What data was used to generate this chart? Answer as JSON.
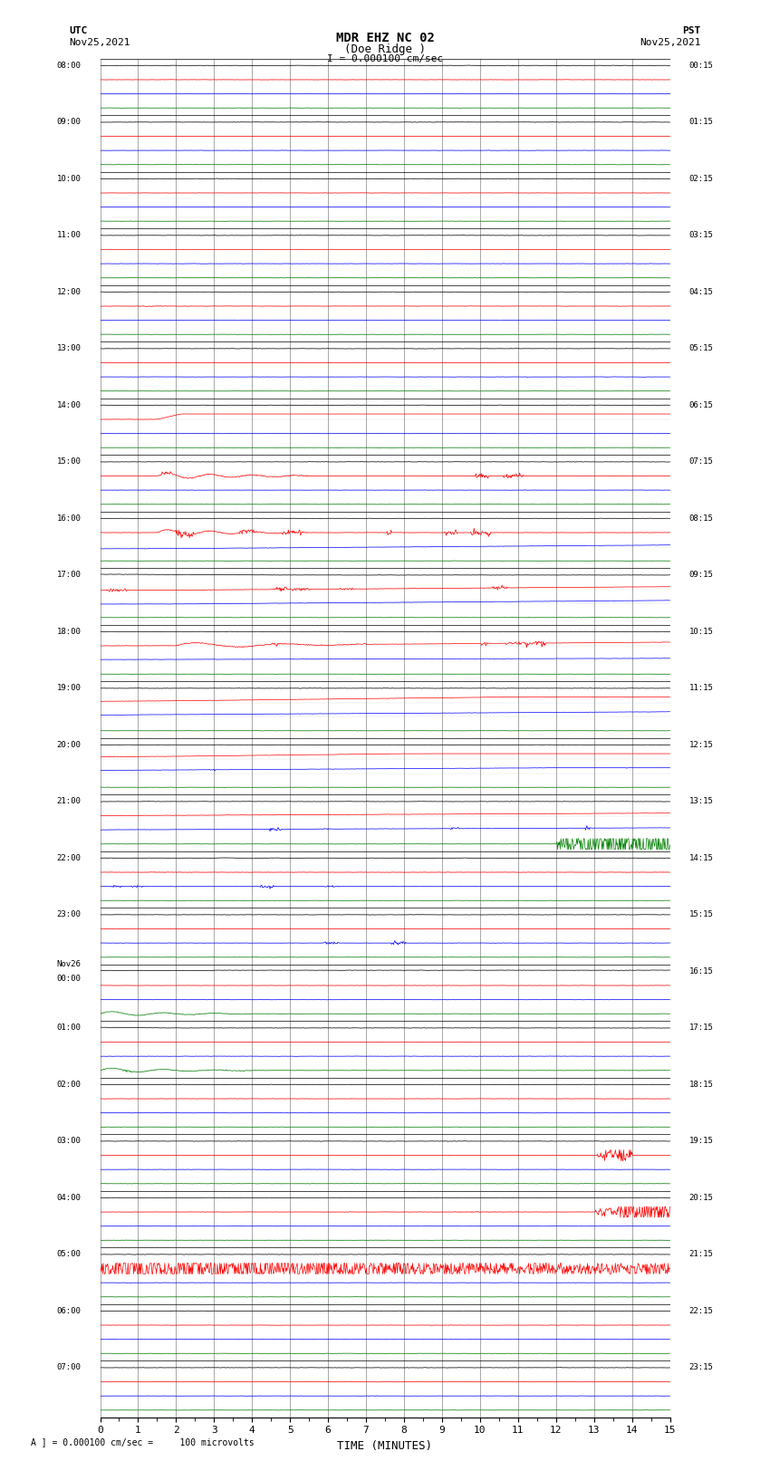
{
  "title_line1": "MDR EHZ NC 02",
  "title_line2": "(Doe Ridge )",
  "scale_label": "I = 0.000100 cm/sec",
  "left_label_top": "UTC",
  "left_label_date": "Nov25,2021",
  "right_label_top": "PST",
  "right_label_date": "Nov25,2021",
  "bottom_label": "TIME (MINUTES)",
  "footnote": "A ] = 0.000100 cm/sec =     100 microvolts",
  "xlabel_ticks": [
    0,
    1,
    2,
    3,
    4,
    5,
    6,
    7,
    8,
    9,
    10,
    11,
    12,
    13,
    14,
    15
  ],
  "bg_color": "#ffffff",
  "grid_color": "#888888",
  "trace_colors": [
    "black",
    "red",
    "blue",
    "green"
  ],
  "fig_width": 8.5,
  "fig_height": 16.13,
  "dpi": 100,
  "all_row_labels_left": [
    "08:00",
    "",
    "",
    "",
    "09:00",
    "",
    "",
    "",
    "10:00",
    "",
    "",
    "",
    "11:00",
    "",
    "",
    "",
    "12:00",
    "",
    "",
    "",
    "13:00",
    "",
    "",
    "",
    "14:00",
    "",
    "",
    "",
    "15:00",
    "",
    "",
    "",
    "16:00",
    "",
    "",
    "",
    "17:00",
    "",
    "",
    "",
    "18:00",
    "",
    "",
    "",
    "19:00",
    "",
    "",
    "",
    "20:00",
    "",
    "",
    "",
    "21:00",
    "",
    "",
    "",
    "22:00",
    "",
    "",
    "",
    "23:00",
    "",
    "",
    "",
    "Nov26\n00:00",
    "",
    "",
    "",
    "01:00",
    "",
    "",
    "",
    "02:00",
    "",
    "",
    "",
    "03:00",
    "",
    "",
    "",
    "04:00",
    "",
    "",
    "",
    "05:00",
    "",
    "",
    "",
    "06:00",
    "",
    "",
    "",
    "07:00",
    "",
    "",
    ""
  ],
  "all_row_labels_right": [
    "00:15",
    "",
    "",
    "",
    "01:15",
    "",
    "",
    "",
    "02:15",
    "",
    "",
    "",
    "03:15",
    "",
    "",
    "",
    "04:15",
    "",
    "",
    "",
    "05:15",
    "",
    "",
    "",
    "06:15",
    "",
    "",
    "",
    "07:15",
    "",
    "",
    "",
    "08:15",
    "",
    "",
    "",
    "09:15",
    "",
    "",
    "",
    "10:15",
    "",
    "",
    "",
    "11:15",
    "",
    "",
    "",
    "12:15",
    "",
    "",
    "",
    "13:15",
    "",
    "",
    "",
    "14:15",
    "",
    "",
    "",
    "15:15",
    "",
    "",
    "",
    "16:15",
    "",
    "",
    "",
    "17:15",
    "",
    "",
    "",
    "18:15",
    "",
    "",
    "",
    "19:15",
    "",
    "",
    "",
    "20:15",
    "",
    "",
    "",
    "21:15",
    "",
    "",
    "",
    "22:15",
    "",
    "",
    "",
    "23:15",
    "",
    "",
    ""
  ]
}
